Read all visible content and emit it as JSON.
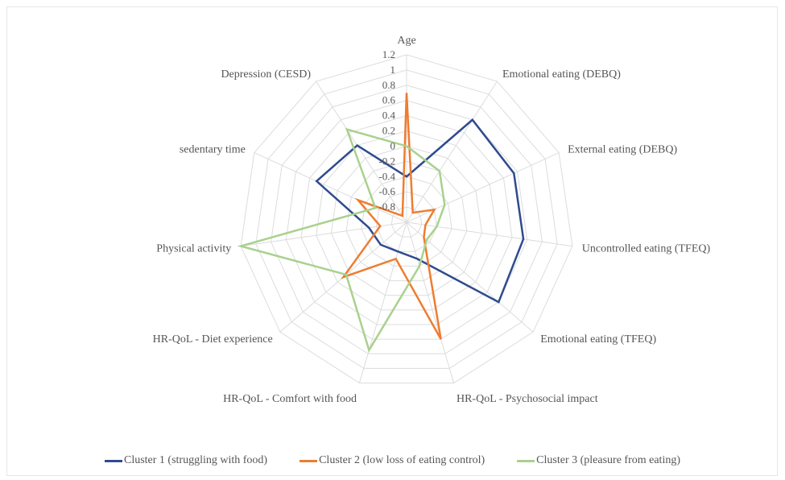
{
  "chart_data": {
    "type": "radar",
    "axes": [
      "Age",
      "Emotional eating (DEBQ)",
      "External eating (DEBQ)",
      "Uncontrolled eating (TFEQ)",
      "Emotional eating (TFEQ)",
      "HR-QoL - Psychosocial impact",
      "HR-QoL - Comfort with food",
      "HR-QoL - Diet experience",
      "Physical activity",
      "sedentary time",
      "Depression (CESD)"
    ],
    "ticks": [
      "1.2",
      "1",
      "0.8",
      "0.6",
      "0.4",
      "0.2",
      "0",
      "-0.2",
      "-0.4",
      "-0.6",
      "-0.8"
    ],
    "range": [
      -1.0,
      1.2
    ],
    "series": [
      {
        "name": "Cluster 1 (struggling with food)",
        "color": "#2f4b8f",
        "values": [
          -0.4,
          0.6,
          0.55,
          0.55,
          0.6,
          -0.5,
          -0.6,
          -0.55,
          -0.5,
          0.3,
          0.2
        ]
      },
      {
        "name": "Cluster 2 (low loss of eating control)",
        "color": "#ed7d31",
        "values": [
          0.7,
          -0.85,
          -0.6,
          -0.75,
          -0.7,
          0.6,
          -0.5,
          0.1,
          -0.65,
          -0.3,
          -0.9
        ]
      },
      {
        "name": "Cluster 3 (pleasure from eating)",
        "color": "#a9d18e",
        "values": [
          0.0,
          -0.2,
          -0.45,
          -0.6,
          -0.65,
          -0.4,
          0.75,
          0.05,
          1.2,
          -0.55,
          0.45
        ]
      }
    ]
  }
}
